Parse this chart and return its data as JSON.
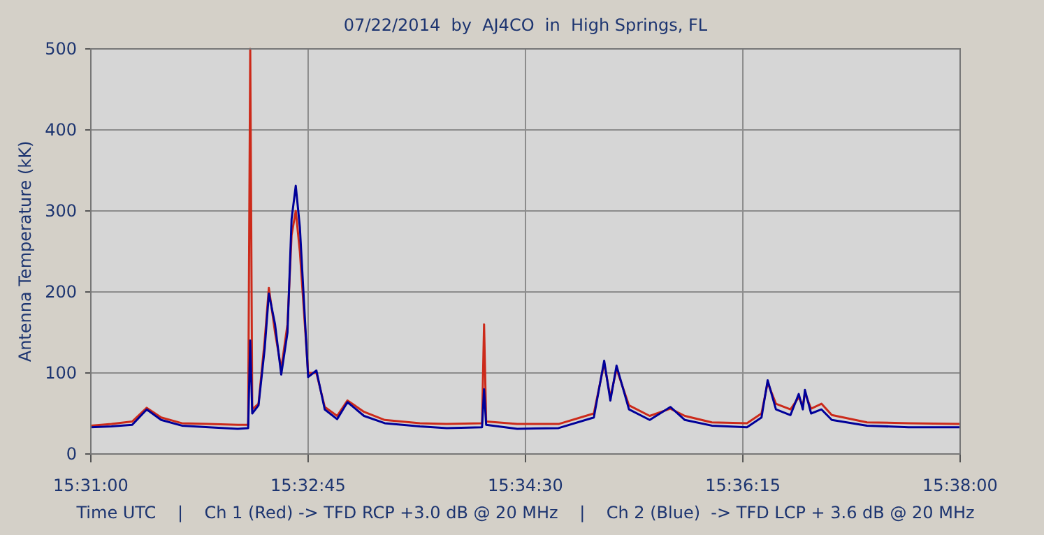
{
  "chart_data": {
    "type": "line",
    "title": "07/22/2014  by  AJ4CO  in  High Springs, FL",
    "xlabel": "Time UTC    |    Ch 1 (Red) -> TFD RCP +3.0 dB @ 20 MHz    |    Ch 2 (Blue)  -> TFD LCP + 3.6 dB @ 20 MHz",
    "ylabel": "Antenna Temperature (kK)",
    "x": [
      15.51667,
      15.51944,
      15.52222,
      15.52417,
      15.52611,
      15.52889,
      15.5325,
      15.53639,
      15.53778,
      15.53806,
      15.53833,
      15.53917,
      15.54,
      15.54056,
      15.54139,
      15.54222,
      15.54306,
      15.54361,
      15.54417,
      15.54472,
      15.54583,
      15.54694,
      15.54806,
      15.54972,
      15.55111,
      15.55333,
      15.55611,
      15.56083,
      15.56444,
      15.56917,
      15.56944,
      15.56972,
      15.57389,
      15.57944,
      15.58417,
      15.58556,
      15.58639,
      15.58722,
      15.58889,
      15.59167,
      15.59444,
      15.59639,
      15.6,
      15.60472,
      15.60667,
      15.6075,
      15.60861,
      15.61056,
      15.61167,
      15.61222,
      15.6125,
      15.61333,
      15.61472,
      15.61611,
      15.62083,
      15.62639,
      15.63333
    ],
    "series": [
      {
        "color": "#cc2a1a",
        "values": [
          35,
          37,
          40,
          57,
          45,
          38,
          37,
          36,
          36,
          500,
          55,
          62,
          140,
          205,
          150,
          105,
          160,
          270,
          300,
          250,
          100,
          100,
          58,
          47,
          66,
          52,
          42,
          38,
          37,
          38,
          160,
          40,
          37,
          37,
          50,
          112,
          70,
          105,
          60,
          47,
          56,
          47,
          39,
          38,
          50,
          88,
          62,
          55,
          70,
          60,
          75,
          56,
          62,
          48,
          39,
          38,
          37
        ]
      },
      {
        "color": "#000099",
        "values": [
          33,
          34,
          36,
          55,
          42,
          35,
          33,
          31,
          32,
          140,
          50,
          60,
          130,
          198,
          160,
          98,
          150,
          290,
          331,
          280,
          95,
          103,
          55,
          43,
          64,
          47,
          38,
          34,
          32,
          33,
          80,
          36,
          31,
          32,
          45,
          115,
          66,
          109,
          55,
          42,
          58,
          42,
          35,
          33,
          45,
          91,
          55,
          48,
          74,
          55,
          79,
          50,
          55,
          42,
          35,
          33,
          33
        ]
      }
    ],
    "xlim": [
      15.51667,
      15.63333
    ],
    "xticks": [
      {
        "value": 15.51667,
        "label": "15:31:00"
      },
      {
        "value": 15.54583,
        "label": "15:32:45"
      },
      {
        "value": 15.575,
        "label": "15:34:30"
      },
      {
        "value": 15.60417,
        "label": "15:36:15"
      },
      {
        "value": 15.63333,
        "label": "15:38:00"
      }
    ],
    "ylim": [
      0,
      500
    ],
    "yticks": [
      0,
      100,
      200,
      300,
      400,
      500
    ],
    "grid": true,
    "marker": "none",
    "line_style": "solid"
  }
}
